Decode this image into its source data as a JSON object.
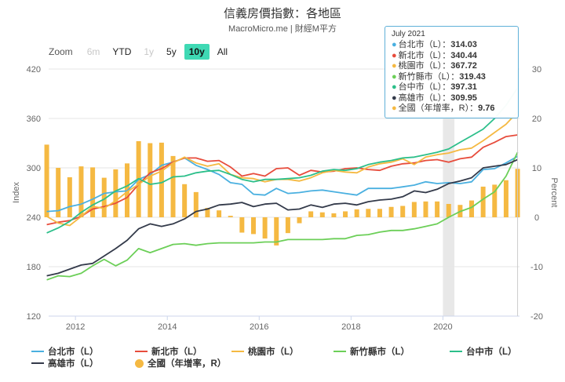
{
  "title": "信義房價指數：各地區",
  "subtitle": "MacroMicro.me | 財經M平方",
  "zoom": {
    "label": "Zoom",
    "buttons": [
      {
        "label": "6m",
        "state": "disabled"
      },
      {
        "label": "YTD",
        "state": "normal"
      },
      {
        "label": "1y",
        "state": "disabled"
      },
      {
        "label": "5y",
        "state": "normal"
      },
      {
        "label": "10y",
        "state": "active"
      },
      {
        "label": "All",
        "state": "normal"
      }
    ]
  },
  "tooltip": {
    "date": "July 2021",
    "rows": [
      {
        "name": "台北市（L）",
        "value": "314.03",
        "color": "#4ab0e0"
      },
      {
        "name": "新北市（L）",
        "value": "340.44",
        "color": "#e74c3c"
      },
      {
        "name": "桃園市（L）",
        "value": "367.72",
        "color": "#f5b942"
      },
      {
        "name": "新竹縣市（L）",
        "value": "319.43",
        "color": "#6ccf58"
      },
      {
        "name": "台中市（L）",
        "value": "397.31",
        "color": "#2cbf8a"
      },
      {
        "name": "高雄市（L）",
        "value": "309.95",
        "color": "#333a4a"
      },
      {
        "name": "全國（年增率，R）",
        "value": "9.76",
        "color": "#f5b942"
      }
    ]
  },
  "colors": {
    "taipei": "#4ab0e0",
    "newtaipei": "#e74c3c",
    "taoyuan": "#f5b942",
    "hsinchu": "#6ccf58",
    "taichung": "#2cbf8a",
    "kaohsiung": "#333a4a",
    "bars": "#f5b942",
    "grid": "#e6e6e6",
    "highlight": "#e6e6e6"
  },
  "chart_data": {
    "type": "line",
    "secondary_type": "bar",
    "left_axis": {
      "label": "Index",
      "ylim": [
        120,
        420
      ],
      "ticks": [
        "120",
        "180",
        "240",
        "300",
        "360",
        "420"
      ]
    },
    "right_axis": {
      "label": "Percent",
      "ylim": [
        -20,
        30
      ],
      "ticks": [
        "-20",
        "-10",
        "0",
        "10",
        "20",
        "30"
      ]
    },
    "x_axis": {
      "range": [
        "2011-06",
        "2021-09"
      ],
      "ticks": [
        "2012",
        "2014",
        "2016",
        "2018",
        "2020"
      ]
    },
    "highlight_band": [
      "2020-01",
      "2020-04"
    ],
    "grid": true,
    "legend_position": "bottom",
    "x": [
      "2011Q2",
      "2011Q3",
      "2011Q4",
      "2012Q1",
      "2012Q2",
      "2012Q3",
      "2012Q4",
      "2013Q1",
      "2013Q2",
      "2013Q3",
      "2013Q4",
      "2014Q1",
      "2014Q2",
      "2014Q3",
      "2014Q4",
      "2015Q1",
      "2015Q2",
      "2015Q3",
      "2015Q4",
      "2016Q1",
      "2016Q2",
      "2016Q3",
      "2016Q4",
      "2017Q1",
      "2017Q2",
      "2017Q3",
      "2017Q4",
      "2018Q1",
      "2018Q2",
      "2018Q3",
      "2018Q4",
      "2019Q1",
      "2019Q2",
      "2019Q3",
      "2019Q4",
      "2020Q1",
      "2020Q2",
      "2020Q3",
      "2020Q4",
      "2021Q1",
      "2021Q2",
      "2021Q3"
    ],
    "series": [
      {
        "name": "台北市（L）",
        "key": "taipei",
        "axis": "left",
        "values": [
          247,
          248,
          253,
          256,
          262,
          269,
          271,
          272,
          286,
          292,
          303,
          307,
          312,
          303,
          298,
          292,
          282,
          280,
          268,
          267,
          275,
          269,
          270,
          272,
          273,
          271,
          269,
          267,
          275,
          275,
          275,
          277,
          279,
          283,
          281,
          282,
          281,
          283,
          298,
          299,
          306,
          314
        ]
      },
      {
        "name": "新北市（L）",
        "key": "newtaipei",
        "axis": "left",
        "values": [
          231,
          234,
          236,
          241,
          250,
          253,
          257,
          264,
          280,
          294,
          299,
          307,
          312,
          312,
          308,
          309,
          301,
          290,
          293,
          290,
          299,
          300,
          291,
          297,
          295,
          296,
          299,
          300,
          298,
          297,
          302,
          305,
          306,
          309,
          310,
          307,
          311,
          313,
          325,
          331,
          338,
          340
        ]
      },
      {
        "name": "桃園市（L）",
        "key": "taoyuan",
        "axis": "left",
        "values": [
          241,
          233,
          230,
          241,
          253,
          251,
          260,
          271,
          280,
          290,
          296,
          306,
          313,
          306,
          302,
          305,
          292,
          288,
          287,
          283,
          286,
          286,
          284,
          288,
          294,
          297,
          295,
          294,
          301,
          305,
          307,
          311,
          304,
          313,
          316,
          318,
          322,
          324,
          333,
          343,
          353,
          368
        ]
      },
      {
        "name": "新竹縣市（L）",
        "key": "hsinchu",
        "axis": "left",
        "values": [
          164,
          169,
          168,
          172,
          181,
          189,
          181,
          188,
          202,
          197,
          202,
          207,
          208,
          206,
          208,
          209,
          209,
          209,
          209,
          210,
          210,
          213,
          213,
          213,
          213,
          214,
          214,
          218,
          219,
          222,
          224,
          224,
          226,
          229,
          232,
          240,
          247,
          252,
          262,
          271,
          290,
          319
        ]
      },
      {
        "name": "台中市（L）",
        "key": "taichung",
        "axis": "left",
        "values": [
          221,
          227,
          235,
          246,
          255,
          262,
          272,
          278,
          287,
          280,
          282,
          289,
          290,
          294,
          296,
          297,
          292,
          286,
          283,
          286,
          286,
          287,
          288,
          291,
          296,
          298,
          297,
          299,
          304,
          307,
          309,
          312,
          313,
          316,
          319,
          323,
          331,
          339,
          347,
          360,
          376,
          397
        ]
      },
      {
        "name": "高雄市（L）",
        "key": "kaohsiung",
        "axis": "left",
        "values": [
          169,
          172,
          177,
          182,
          184,
          193,
          202,
          212,
          226,
          232,
          229,
          232,
          238,
          247,
          250,
          255,
          256,
          258,
          253,
          256,
          257,
          249,
          250,
          255,
          252,
          256,
          257,
          255,
          259,
          261,
          262,
          265,
          272,
          270,
          274,
          281,
          284,
          288,
          300,
          302,
          304,
          310
        ]
      },
      {
        "name": "全國（年增率，R）",
        "key": "bars",
        "axis": "right",
        "type": "bar",
        "values": [
          14.7,
          10.0,
          8.1,
          10.3,
          10.1,
          8.0,
          9.7,
          10.9,
          15.4,
          15.0,
          15.1,
          12.4,
          6.7,
          5.1,
          1.9,
          1.4,
          0.3,
          -3.1,
          -3.4,
          -4.3,
          -5.7,
          -3.2,
          -1.2,
          1.2,
          1.0,
          0.8,
          1.2,
          1.6,
          1.7,
          1.7,
          2.1,
          2.3,
          3.1,
          3.2,
          3.2,
          2.7,
          2.5,
          3.4,
          6.2,
          6.6,
          7.5,
          9.8
        ]
      }
    ]
  },
  "legend": [
    {
      "label": "台北市（L）",
      "key": "taipei",
      "kind": "line"
    },
    {
      "label": "新北市（L）",
      "key": "newtaipei",
      "kind": "line"
    },
    {
      "label": "桃園市（L）",
      "key": "taoyuan",
      "kind": "line"
    },
    {
      "label": "新竹縣市（L）",
      "key": "hsinchu",
      "kind": "line"
    },
    {
      "label": "台中市（L）",
      "key": "taichung",
      "kind": "line"
    },
    {
      "label": "高雄市（L）",
      "key": "kaohsiung",
      "kind": "line"
    },
    {
      "label": "全國（年增率，R）",
      "key": "bars",
      "kind": "dot"
    }
  ]
}
